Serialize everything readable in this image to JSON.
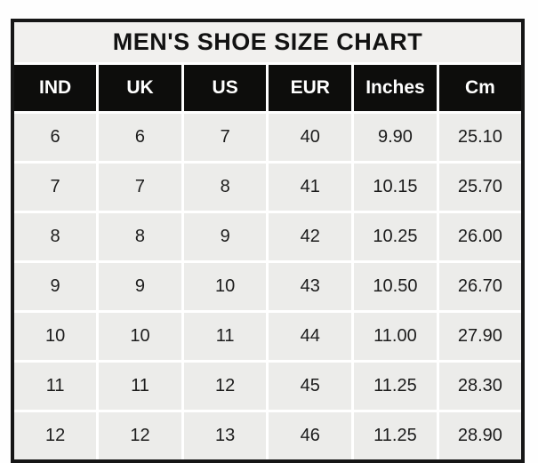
{
  "chart_data": {
    "type": "table",
    "title": "MEN'S SHOE SIZE CHART",
    "columns": [
      "IND",
      "UK",
      "US",
      "EUR",
      "Inches",
      "Cm"
    ],
    "rows": [
      [
        "6",
        "6",
        "7",
        "40",
        "9.90",
        "25.10"
      ],
      [
        "7",
        "7",
        "8",
        "41",
        "10.15",
        "25.70"
      ],
      [
        "8",
        "8",
        "9",
        "42",
        "10.25",
        "26.00"
      ],
      [
        "9",
        "9",
        "10",
        "43",
        "10.50",
        "26.70"
      ],
      [
        "10",
        "10",
        "11",
        "44",
        "11.00",
        "27.90"
      ],
      [
        "11",
        "11",
        "12",
        "45",
        "11.25",
        "28.30"
      ],
      [
        "12",
        "12",
        "13",
        "46",
        "11.25",
        "28.90"
      ]
    ]
  },
  "colors": {
    "title_bg": "#f1f0ee",
    "cell_bg": "#ececea",
    "header_bg": "#0d0d0c",
    "header_text": "#ffffff",
    "grid": "#ffffff",
    "border": "#161616",
    "text": "#1c1c1c"
  }
}
